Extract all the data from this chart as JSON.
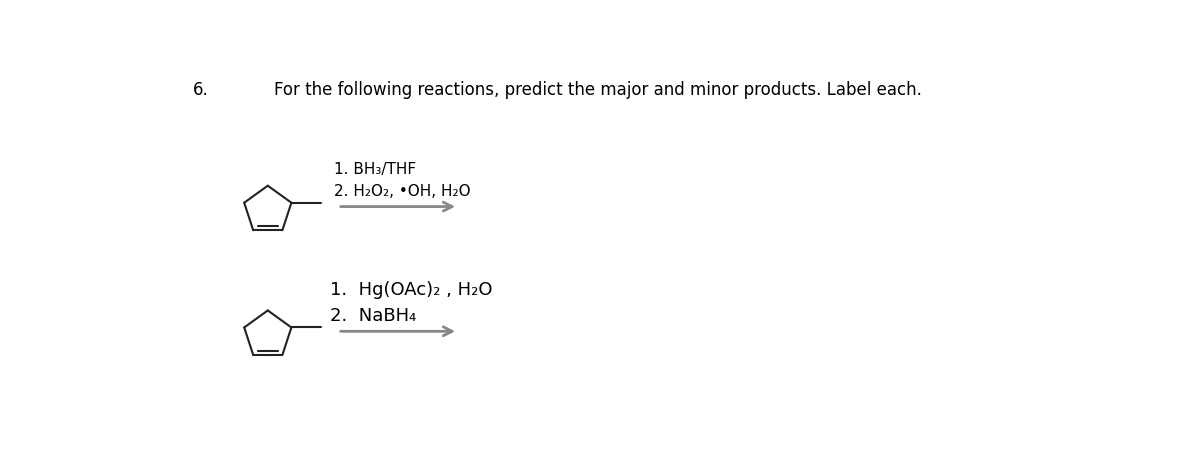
{
  "title_number": "6.",
  "title_text": "For the following reactions, predict the major and minor products. Label each.",
  "title_fontsize": 12,
  "bg_color": "#ffffff",
  "reaction1_label1": "1. BH₃/THF",
  "reaction1_label2": "2. H₂O₂, •OH, H₂O",
  "reaction2_label1": "1.  Hg(OAc)₂ , H₂O",
  "reaction2_label2": "2.  NaBH₄",
  "arrow_color": "#888888",
  "molecule_color": "#222222",
  "label_fontsize": 11,
  "label2_fontsize": 13,
  "fig_width": 12.0,
  "fig_height": 4.63
}
